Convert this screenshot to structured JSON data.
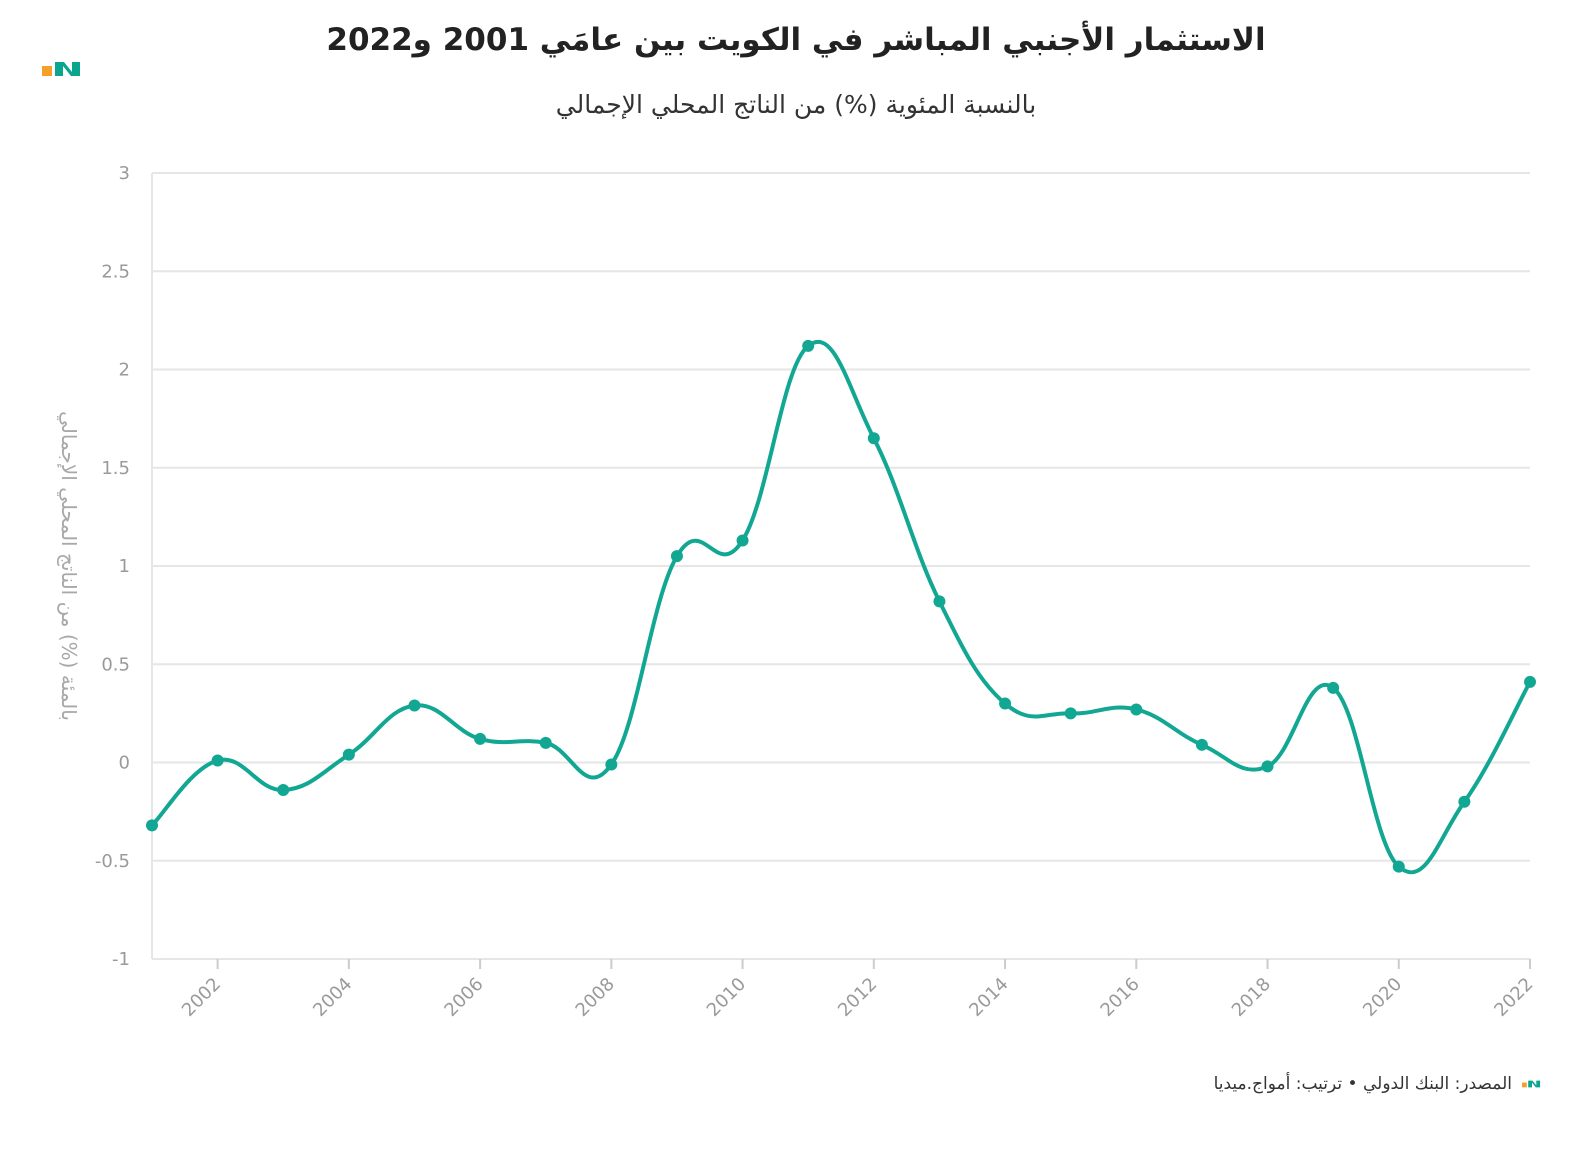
{
  "header": {
    "title": "الاستثمار الأجنبي المباشر في الكويت بين عامَي 2001 و2022",
    "subtitle": "بالنسبة المئوية (%) من الناتج المحلي الإجمالي"
  },
  "footer": {
    "source": "المصدر: البنك الدولي • ترتيب: أمواج.ميديا"
  },
  "brand": {
    "logo_icon": "amwaj-logo-icon",
    "colors": {
      "orange": "#f4a02a",
      "teal": "#0aa58e",
      "line": "#12a793"
    }
  },
  "chart_data": {
    "type": "line",
    "title": "الاستثمار الأجنبي المباشر في الكويت بين عامَي 2001 و2022",
    "subtitle": "بالنسبة المئوية (%) من الناتج المحلي الإجمالي",
    "xlabel": "",
    "ylabel": "بالمئة (%) من الناتج المحلي الإجمالي",
    "x": [
      2001,
      2002,
      2003,
      2004,
      2005,
      2006,
      2007,
      2008,
      2009,
      2010,
      2011,
      2012,
      2013,
      2014,
      2015,
      2016,
      2017,
      2018,
      2019,
      2020,
      2021,
      2022
    ],
    "y": [
      -0.32,
      0.01,
      -0.14,
      0.04,
      0.29,
      0.12,
      0.1,
      -0.01,
      1.05,
      1.13,
      2.12,
      1.65,
      0.82,
      0.3,
      0.25,
      0.27,
      0.09,
      -0.02,
      0.38,
      -0.53,
      -0.2,
      0.41
    ],
    "xlim": [
      2001,
      2022
    ],
    "ylim": [
      -1,
      3
    ],
    "yticks": [
      -1,
      -0.5,
      0,
      0.5,
      1,
      1.5,
      2,
      2.5,
      3
    ],
    "ytick_labels": [
      "-1",
      "-0.5",
      "0",
      "0.5",
      "1",
      "1.5",
      "2",
      "2.5",
      "3"
    ],
    "xticks": [
      2002,
      2004,
      2006,
      2008,
      2010,
      2012,
      2014,
      2016,
      2018,
      2020,
      2022
    ],
    "xtick_labels": [
      "2002",
      "2004",
      "2006",
      "2008",
      "2010",
      "2012",
      "2014",
      "2016",
      "2018",
      "2020",
      "2022"
    ],
    "grid": true,
    "legend": "none",
    "series_color": "#12a793"
  }
}
